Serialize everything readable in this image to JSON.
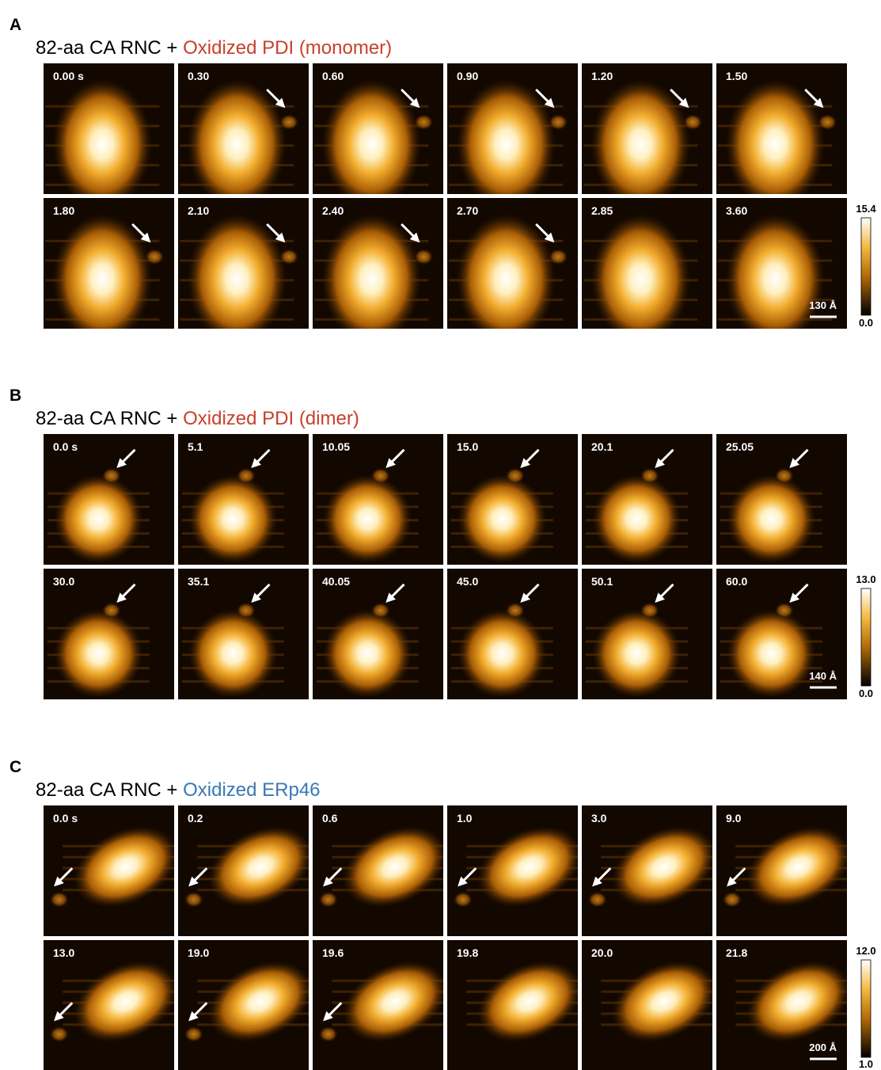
{
  "panels": [
    {
      "letter": "A",
      "title": {
        "prefix": "82-aa CA RNC + ",
        "highlight": "Oxidized PDI (monomer)",
        "highlight_color": "#c8402a"
      },
      "frames": [
        "0.00 s",
        "0.30",
        "0.60",
        "0.90",
        "1.20",
        "1.50",
        "1.80",
        "2.10",
        "2.40",
        "2.70",
        "2.85",
        "3.60"
      ],
      "colorbar": {
        "max": "15.4",
        "min": "0.0"
      },
      "scale_bar": "130 Å"
    },
    {
      "letter": "B",
      "title": {
        "prefix": "82-aa CA RNC + ",
        "highlight": "Oxidized PDI (dimer)",
        "highlight_color": "#c8402a"
      },
      "frames": [
        "0.0 s",
        "5.1",
        "10.05",
        "15.0",
        "20.1",
        "25.05",
        "30.0",
        "35.1",
        "40.05",
        "45.0",
        "50.1",
        "60.0"
      ],
      "colorbar": {
        "max": "13.0",
        "min": "0.0"
      },
      "scale_bar": "140 Å"
    },
    {
      "letter": "C",
      "title": {
        "prefix": "82-aa CA RNC + ",
        "highlight": "Oxidized ERp46",
        "highlight_color": "#3a78b5"
      },
      "frames": [
        "0.0 s",
        "0.2",
        "0.6",
        "1.0",
        "3.0",
        "9.0",
        "13.0",
        "19.0",
        "19.6",
        "19.8",
        "20.0",
        "21.8"
      ],
      "colorbar": {
        "max": "12.0",
        "min": "1.0"
      },
      "scale_bar": "200 Å"
    }
  ]
}
